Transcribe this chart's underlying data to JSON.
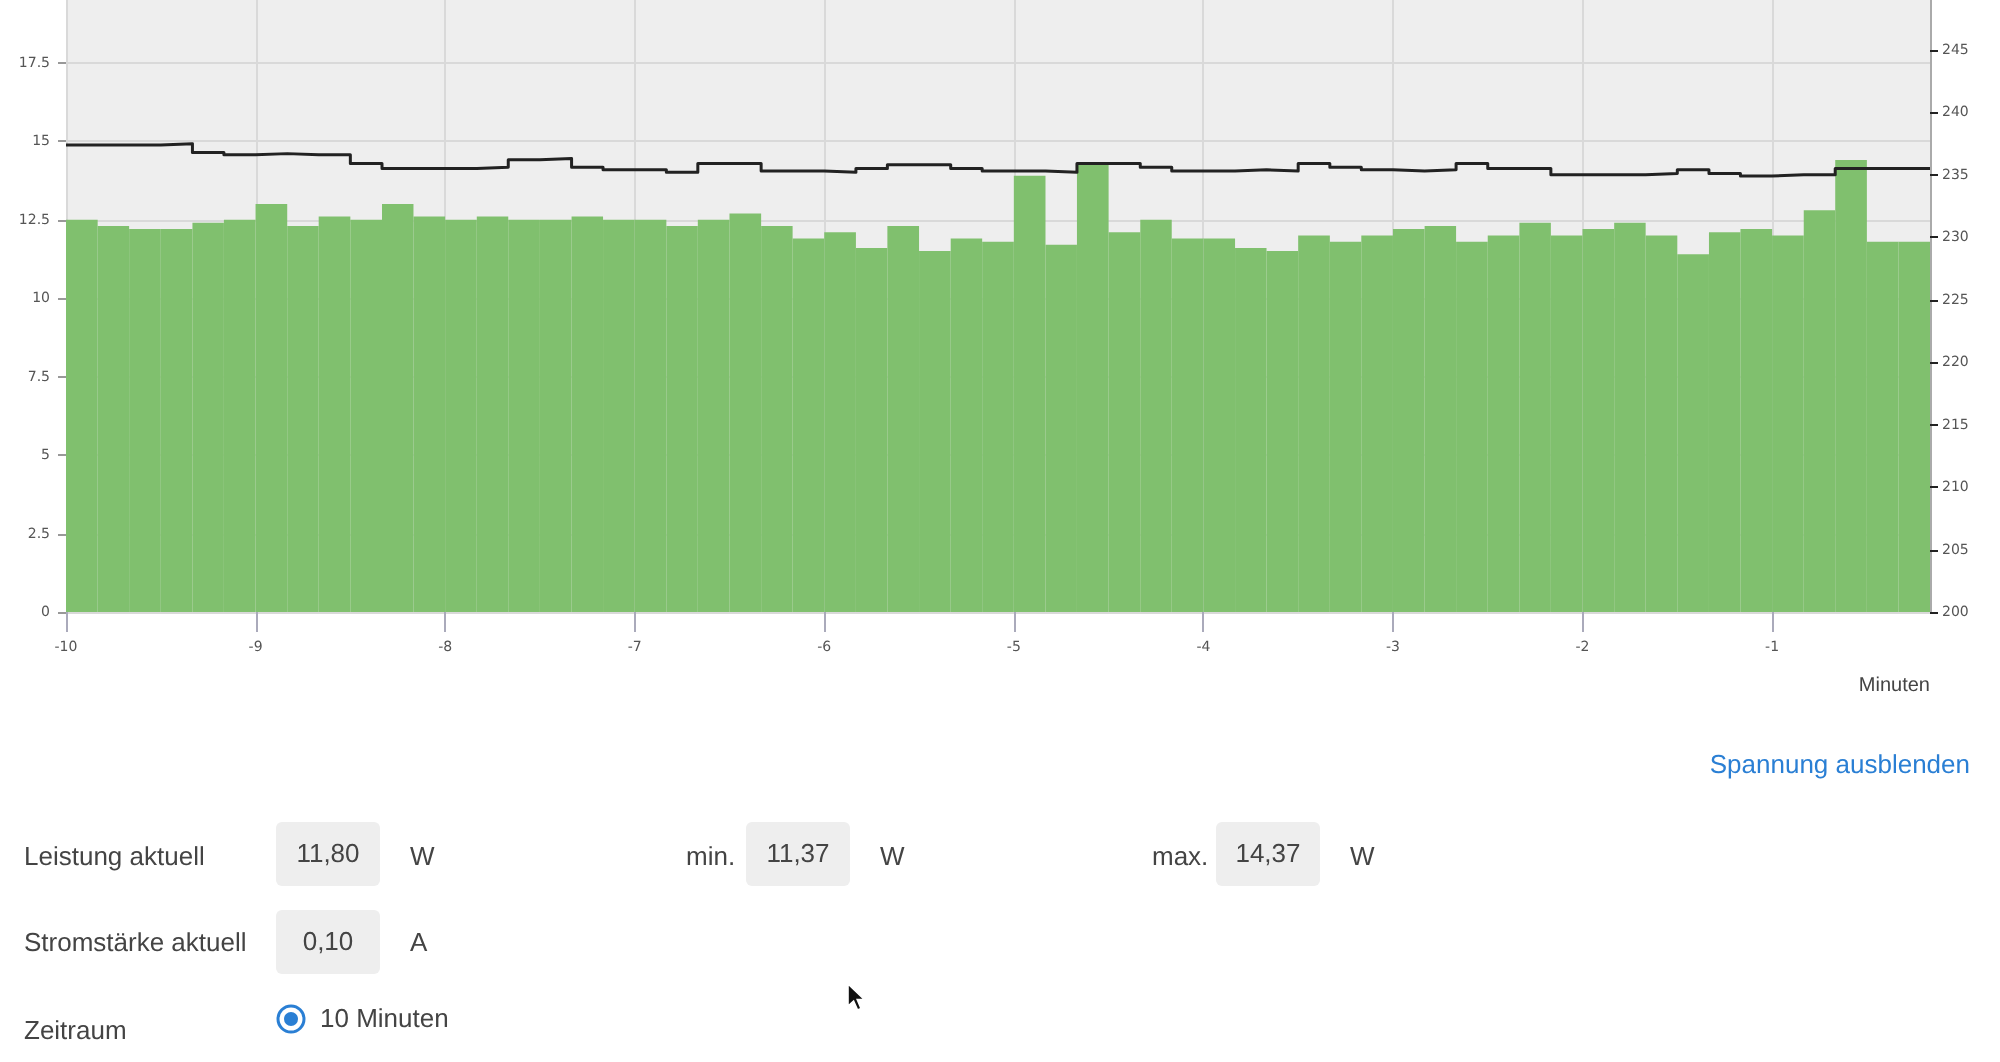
{
  "chart_data": {
    "type": "histogram",
    "bins": [
      -10,
      -9.833,
      -9.667,
      -9.5,
      -9.333,
      -9.167,
      -9,
      -8.833,
      -8.667,
      -8.5,
      -8.333,
      -8.167,
      -8,
      -7.833,
      -7.667,
      -7.5,
      -7.333,
      -7.167,
      -7,
      -6.833,
      -6.667,
      -6.5,
      -6.333,
      -6.167,
      -6,
      -5.833,
      -5.667,
      -5.5,
      -5.333,
      -5.167,
      -5,
      -4.833,
      -4.667,
      -4.5,
      -4.333,
      -4.167,
      -4,
      -3.833,
      -3.667,
      -3.5,
      -3.333,
      -3.167,
      -3,
      -2.833,
      -2.667,
      -2.5,
      -2.333,
      -2.167,
      -2,
      -1.833,
      -1.667,
      -1.5,
      -1.333,
      -1.167,
      -1,
      -0.833,
      -0.667,
      -0.5,
      -0.333,
      -0.167
    ],
    "series": [
      {
        "color": "#80c06e",
        "values": [
          12.5,
          12.3,
          12.2,
          12.2,
          12.4,
          12.5,
          13.0,
          12.3,
          12.6,
          12.5,
          13.0,
          12.6,
          12.5,
          12.6,
          12.5,
          12.5,
          12.6,
          12.5,
          12.5,
          12.3,
          12.5,
          12.7,
          12.3,
          11.9,
          12.1,
          11.6,
          12.3,
          11.5,
          11.9,
          11.8,
          13.9,
          11.7,
          14.3,
          12.1,
          12.5,
          11.9,
          11.9,
          11.6,
          11.5,
          12.0,
          11.8,
          12.0,
          12.2,
          12.3,
          11.8,
          12.0,
          12.4,
          12.0,
          12.2,
          12.4,
          12.0,
          11.4,
          12.1,
          12.2,
          12.0,
          12.8,
          14.4,
          11.8,
          11.8
        ]
      },
      {
        "type": "step",
        "axis": "y2",
        "color": "#222222",
        "x": [
          -10,
          -9.833,
          -9.667,
          -9.5,
          -9.333,
          -9.167,
          -9,
          -8.833,
          -8.667,
          -8.5,
          -8.333,
          -8.167,
          -8,
          -7.833,
          -7.667,
          -7.5,
          -7.333,
          -7.167,
          -7,
          -6.833,
          -6.667,
          -6.5,
          -6.333,
          -6.167,
          -6,
          -5.833,
          -5.667,
          -5.5,
          -5.333,
          -5.167,
          -5,
          -4.833,
          -4.667,
          -4.5,
          -4.333,
          -4.167,
          -4,
          -3.833,
          -3.667,
          -3.5,
          -3.333,
          -3.167,
          -3,
          -2.833,
          -2.667,
          -2.5,
          -2.333,
          -2.167,
          -2,
          -1.833,
          -1.667,
          -1.5,
          -1.333,
          -1.167,
          -1,
          -0.833,
          -0.667,
          -0.5,
          -0.333,
          -0.167
        ],
        "values": [
          237.4,
          237.4,
          237.4,
          237.5,
          236.8,
          236.6,
          236.7,
          236.6,
          236.6,
          235.9,
          235.5,
          235.5,
          235.5,
          235.6,
          236.2,
          236.3,
          235.6,
          235.4,
          235.4,
          235.2,
          235.9,
          235.9,
          235.3,
          235.3,
          235.2,
          235.5,
          235.8,
          235.8,
          235.5,
          235.3,
          235.3,
          235.2,
          235.9,
          235.9,
          235.6,
          235.3,
          235.3,
          235.4,
          235.3,
          235.9,
          235.6,
          235.4,
          235.3,
          235.4,
          235.9,
          235.5,
          235.5,
          235.0,
          235.0,
          235.0,
          235.1,
          235.4,
          235.1,
          234.9,
          235.0,
          235.0,
          235.5,
          235.5,
          235.5,
          235.5
        ]
      }
    ],
    "xlim": [
      -10,
      -0.167
    ],
    "xticks": [
      -10,
      -9,
      -8,
      -7,
      -6,
      -5,
      -4,
      -3,
      -2,
      -1
    ],
    "ylim": [
      0,
      19.5
    ],
    "yticks": [
      0,
      2.5,
      5,
      7.5,
      10,
      12.5,
      15,
      17.5
    ],
    "y2lim": [
      200,
      249
    ],
    "y2ticks": [
      200,
      205,
      210,
      215,
      220,
      225,
      230,
      235,
      240,
      245
    ],
    "xlabel": "Minuten",
    "grid": true,
    "annotations": [
      "Spannung ausblenden",
      "Leistung aktuell",
      "11,80",
      "W",
      "min.",
      "11,37",
      "W",
      "max.",
      "14,37",
      "W",
      "Stromstärke aktuell",
      "0,10",
      "A",
      "Zeitraum",
      "10 Minuten"
    ]
  }
}
